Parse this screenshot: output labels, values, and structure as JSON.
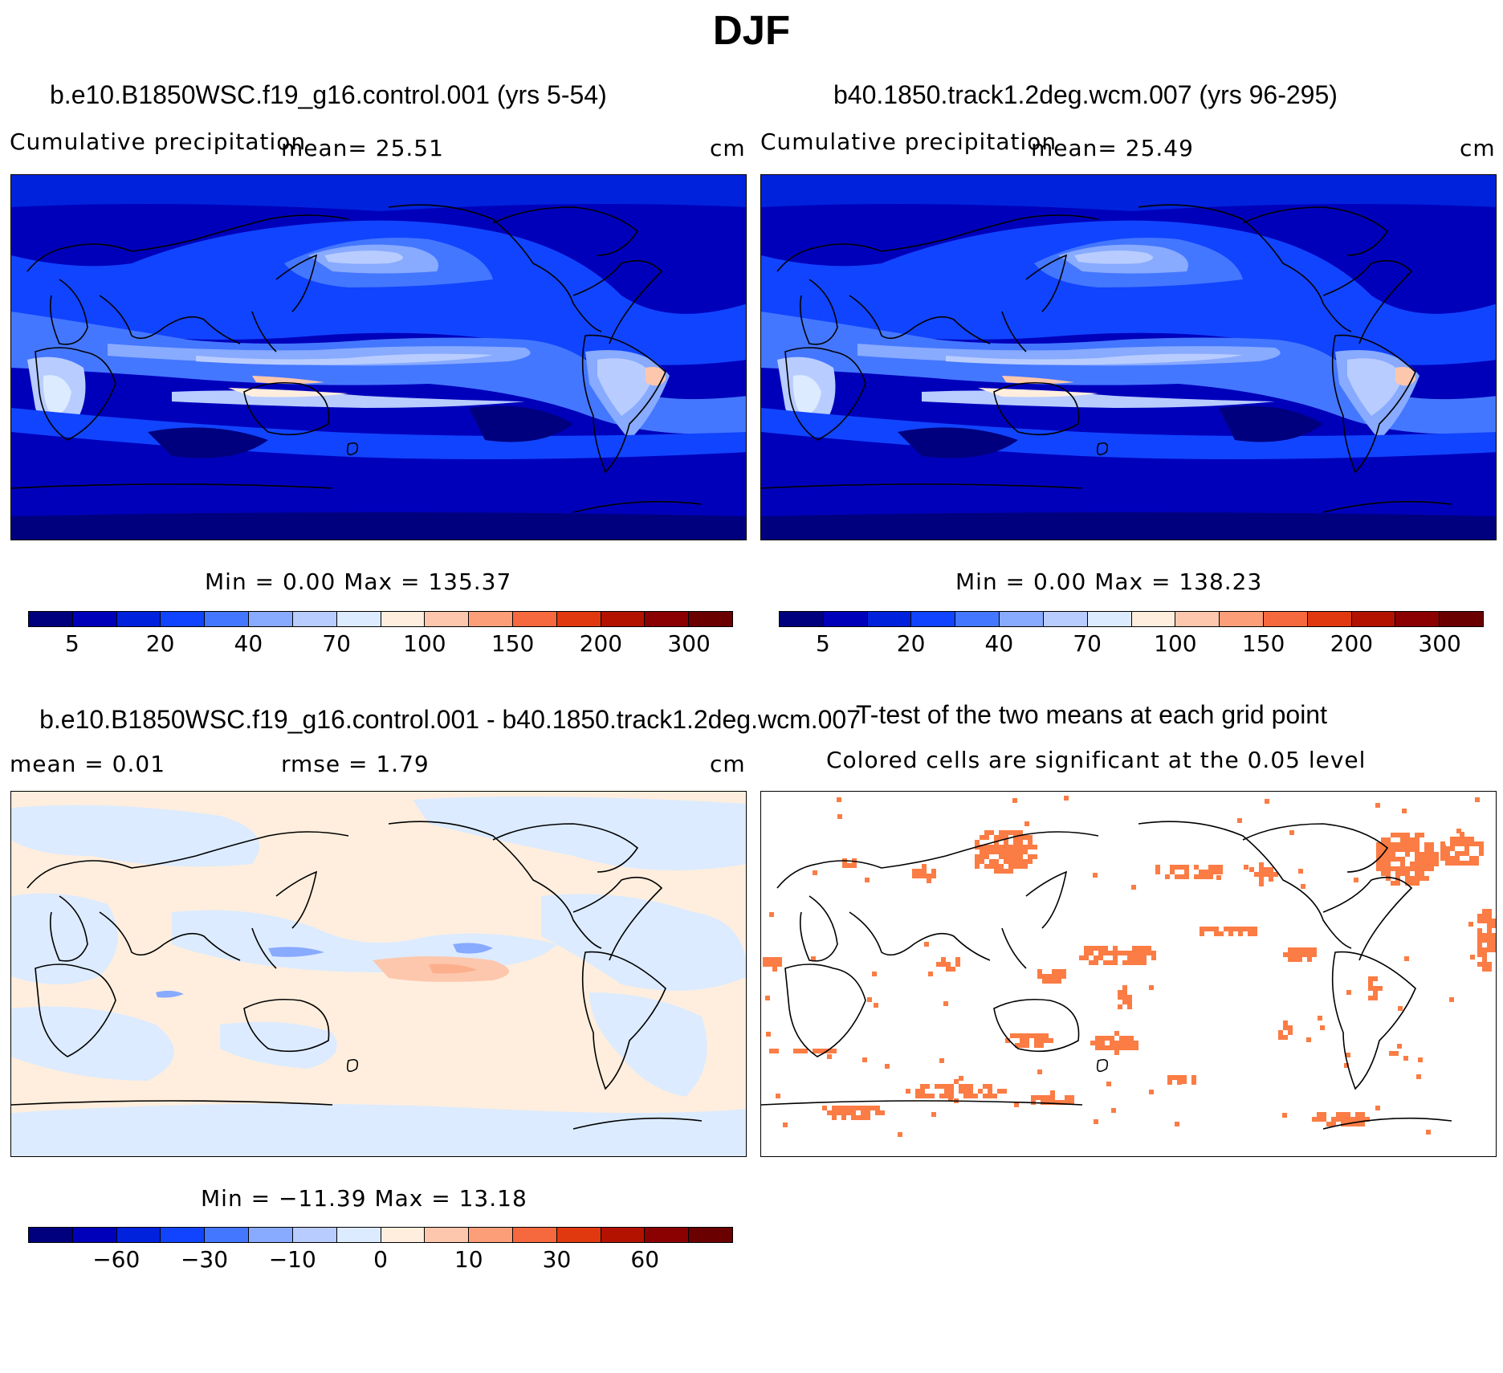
{
  "page_title": "DJF",
  "colors": {
    "precip_scale": [
      "#00007f",
      "#0000bb",
      "#0022dd",
      "#1144ff",
      "#4477ff",
      "#88aaff",
      "#b8ccff",
      "#dcebff",
      "#ffeedd",
      "#fdc7ad",
      "#fc9f78",
      "#f6683e",
      "#e0390f",
      "#b31200",
      "#8b0000",
      "#6b0000"
    ],
    "diff_scale": [
      "#00007f",
      "#0000bb",
      "#0022dd",
      "#1144ff",
      "#4477ff",
      "#88aaff",
      "#b8ccff",
      "#dcebff",
      "#ffeedd",
      "#fdc7ad",
      "#fc9f78",
      "#f6683e",
      "#e0390f",
      "#b31200",
      "#8b0000",
      "#6b0000"
    ],
    "significant": "#fb7c44",
    "coast": "#000000"
  },
  "chart_data": [
    {
      "type": "heatmap",
      "title": "b.e10.B1850WSC.f19_g16.control.001 (yrs 5-54)",
      "left_label": "Cumulative precipitation",
      "center_label": "mean=   25.51",
      "units": "cm",
      "minmax": "Min =    0.00 Max =  135.37",
      "colorbar_ticks": [
        "5",
        "20",
        "40",
        "70",
        "100",
        "150",
        "200",
        "300"
      ],
      "mean": 25.51,
      "min": 0.0,
      "max": 135.37
    },
    {
      "type": "heatmap",
      "title": "b40.1850.track1.2deg.wcm.007 (yrs 96-295)",
      "left_label": "Cumulative precipitation",
      "center_label": "mean=   25.49",
      "units": "cm",
      "minmax": "Min =    0.00 Max =  138.23",
      "colorbar_ticks": [
        "5",
        "20",
        "40",
        "70",
        "100",
        "150",
        "200",
        "300"
      ],
      "mean": 25.49,
      "min": 0.0,
      "max": 138.23
    },
    {
      "type": "heatmap",
      "title": "b.e10.B1850WSC.f19_g16.control.001 - b40.1850.track1.2deg.wcm.007",
      "left_label": "mean =    0.01",
      "center_label": "rmse =    1.79",
      "units": "cm",
      "minmax": "Min = −11.39 Max =   13.18",
      "colorbar_ticks": [
        "−60",
        "−30",
        "−10",
        "0",
        "10",
        "30",
        "60"
      ],
      "mean": 0.01,
      "rmse": 1.79,
      "min": -11.39,
      "max": 13.18
    },
    {
      "type": "heatmap",
      "title": "T-test of the two means at each grid point",
      "subtitle": "Colored cells are significant at the 0.05 level"
    }
  ]
}
